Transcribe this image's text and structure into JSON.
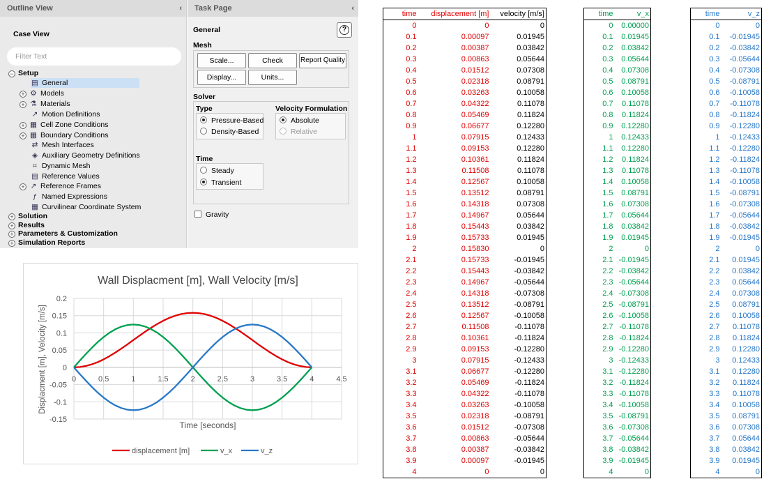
{
  "outline": {
    "title": "Outline View",
    "collapse": "‹",
    "case_view": "Case View",
    "filter_placeholder": "Filter Text",
    "items": [
      {
        "label": "Setup",
        "bold": true,
        "expander": "−",
        "icon": ""
      },
      {
        "label": "General",
        "icon": "general-icon",
        "selected": true
      },
      {
        "label": "Models",
        "expander": "+",
        "icon": "models-icon"
      },
      {
        "label": "Materials",
        "expander": "+",
        "icon": "materials-icon"
      },
      {
        "label": "Motion Definitions",
        "icon": "motion-icon"
      },
      {
        "label": "Cell Zone Conditions",
        "expander": "+",
        "icon": "cell-zone-icon"
      },
      {
        "label": "Boundary Conditions",
        "expander": "+",
        "icon": "boundary-icon"
      },
      {
        "label": "Mesh Interfaces",
        "icon": "mesh-interfaces-icon"
      },
      {
        "label": "Auxiliary Geometry Definitions",
        "icon": "auxiliary-geometry-icon"
      },
      {
        "label": "Dynamic Mesh",
        "icon": "dynamic-mesh-icon"
      },
      {
        "label": "Reference Values",
        "icon": "reference-values-icon"
      },
      {
        "label": "Reference Frames",
        "expander": "+",
        "icon": "reference-frames-icon"
      },
      {
        "label": "Named Expressions",
        "icon": "named-expressions-icon"
      },
      {
        "label": "Curvilinear Coordinate System",
        "icon": "curvilinear-icon"
      },
      {
        "label": "Solution",
        "bold": true,
        "expander": "+"
      },
      {
        "label": "Results",
        "bold": true,
        "expander": "+"
      },
      {
        "label": "Parameters & Customization",
        "bold": true,
        "expander": "+"
      },
      {
        "label": "Simulation Reports",
        "bold": true,
        "expander": "+"
      }
    ]
  },
  "task": {
    "title": "Task Page",
    "collapse": "‹",
    "general": "General",
    "help": "?",
    "mesh": "Mesh",
    "buttons": {
      "scale": "Scale...",
      "check": "Check",
      "report_quality": "Report Quality",
      "display": "Display...",
      "units": "Units..."
    },
    "solver": "Solver",
    "type_label": "Type",
    "type_options": [
      "Pressure-Based",
      "Density-Based"
    ],
    "type_selected": 0,
    "velocity_label": "Velocity Formulation",
    "velocity_options": [
      "Absolute",
      "Relative"
    ],
    "velocity_selected": 0,
    "time_label": "Time",
    "time_options": [
      "Steady",
      "Transient"
    ],
    "time_selected": 1,
    "gravity": "Gravity",
    "gravity_checked": false
  },
  "colors": {
    "displacement": "#e00000",
    "v_x": "#00a050",
    "v_z": "#2878c8"
  },
  "chart_data": {
    "type": "line",
    "title": "Wall Displacment [m], Wall Velocity [m/s]",
    "xlabel": "Time [seconds]",
    "ylabel": "Displacment [m], Velocity [m/s]",
    "xlim": [
      0,
      4.5
    ],
    "ylim": [
      -0.15,
      0.2
    ],
    "xticks": [
      "0",
      "0.5",
      "1",
      "1.5",
      "2",
      "2.5",
      "3",
      "3.5",
      "4",
      "4.5"
    ],
    "yticks": [
      "0.2",
      "0.15",
      "0.1",
      "0.05",
      "0",
      "-0.05",
      "-0.1",
      "-0.15"
    ],
    "grid": true,
    "legend": "bottom",
    "x": [
      0,
      0.1,
      0.2,
      0.3,
      0.4,
      0.5,
      0.6,
      0.7,
      0.8,
      0.9,
      1,
      1.1,
      1.2,
      1.3,
      1.4,
      1.5,
      1.6,
      1.7,
      1.8,
      1.9,
      2,
      2.1,
      2.2,
      2.3,
      2.4,
      2.5,
      2.6,
      2.7,
      2.8,
      2.9,
      3,
      3.1,
      3.2,
      3.3,
      3.4,
      3.5,
      3.6,
      3.7,
      3.8,
      3.9,
      4
    ],
    "series": [
      {
        "name": "displacement [m]",
        "values": [
          0,
          0.00097,
          0.00387,
          0.00863,
          0.01512,
          0.02318,
          0.03263,
          0.04322,
          0.05469,
          0.06677,
          0.07915,
          0.09153,
          0.10361,
          0.11508,
          0.12567,
          0.13512,
          0.14318,
          0.14967,
          0.15443,
          0.15733,
          0.1583,
          0.15733,
          0.15443,
          0.14967,
          0.14318,
          0.13512,
          0.12567,
          0.11508,
          0.10361,
          0.09153,
          0.07915,
          0.06677,
          0.05469,
          0.04322,
          0.03263,
          0.02318,
          0.01512,
          0.00863,
          0.00387,
          0.00097,
          0
        ]
      },
      {
        "name": "v_x",
        "values": [
          0,
          0.01945,
          0.03842,
          0.05644,
          0.07308,
          0.08791,
          0.10058,
          0.11078,
          0.11824,
          0.1228,
          0.12433,
          0.1228,
          0.11824,
          0.11078,
          0.10058,
          0.08791,
          0.07308,
          0.05644,
          0.03842,
          0.01945,
          0,
          -0.01945,
          -0.03842,
          -0.05644,
          -0.07308,
          -0.08791,
          -0.10058,
          -0.11078,
          -0.11824,
          -0.1228,
          -0.12433,
          -0.1228,
          -0.11824,
          -0.11078,
          -0.10058,
          -0.08791,
          -0.07308,
          -0.05644,
          -0.03842,
          -0.01945,
          0
        ]
      },
      {
        "name": "v_z",
        "values": [
          0,
          -0.01945,
          -0.03842,
          -0.05644,
          -0.07308,
          -0.08791,
          -0.10058,
          -0.11078,
          -0.11824,
          -0.1228,
          -0.12433,
          -0.1228,
          -0.11824,
          -0.11078,
          -0.10058,
          -0.08791,
          -0.07308,
          -0.05644,
          -0.03842,
          -0.01945,
          0,
          0.01945,
          0.03842,
          0.05644,
          0.07308,
          0.08791,
          0.10058,
          0.11078,
          0.11824,
          0.1228,
          0.12433,
          0.1228,
          0.11824,
          0.11078,
          0.10058,
          0.08791,
          0.07308,
          0.05644,
          0.03842,
          0.01945,
          0
        ]
      }
    ]
  },
  "tables": [
    {
      "headers": [
        "time",
        "displacement [m]",
        "velocity [m/s]"
      ],
      "header_colors": [
        "red",
        "red",
        "black"
      ],
      "col_colors": [
        "red",
        "red",
        "black"
      ],
      "cols": [
        [
          "0",
          "0.1",
          "0.2",
          "0.3",
          "0.4",
          "0.5",
          "0.6",
          "0.7",
          "0.8",
          "0.9",
          "1",
          "1.1",
          "1.2",
          "1.3",
          "1.4",
          "1.5",
          "1.6",
          "1.7",
          "1.8",
          "1.9",
          "2",
          "2.1",
          "2.2",
          "2.3",
          "2.4",
          "2.5",
          "2.6",
          "2.7",
          "2.8",
          "2.9",
          "3",
          "3.1",
          "3.2",
          "3.3",
          "3.4",
          "3.5",
          "3.6",
          "3.7",
          "3.8",
          "3.9",
          "4"
        ],
        [
          "0",
          "0.00097",
          "0.00387",
          "0.00863",
          "0.01512",
          "0.02318",
          "0.03263",
          "0.04322",
          "0.05469",
          "0.06677",
          "0.07915",
          "0.09153",
          "0.10361",
          "0.11508",
          "0.12567",
          "0.13512",
          "0.14318",
          "0.14967",
          "0.15443",
          "0.15733",
          "0.15830",
          "0.15733",
          "0.15443",
          "0.14967",
          "0.14318",
          "0.13512",
          "0.12567",
          "0.11508",
          "0.10361",
          "0.09153",
          "0.07915",
          "0.06677",
          "0.05469",
          "0.04322",
          "0.03263",
          "0.02318",
          "0.01512",
          "0.00863",
          "0.00387",
          "0.00097",
          "0"
        ],
        [
          "0",
          "0.01945",
          "0.03842",
          "0.05644",
          "0.07308",
          "0.08791",
          "0.10058",
          "0.11078",
          "0.11824",
          "0.12280",
          "0.12433",
          "0.12280",
          "0.11824",
          "0.11078",
          "0.10058",
          "0.08791",
          "0.07308",
          "0.05644",
          "0.03842",
          "0.01945",
          "0",
          "-0.01945",
          "-0.03842",
          "-0.05644",
          "-0.07308",
          "-0.08791",
          "-0.10058",
          "-0.11078",
          "-0.11824",
          "-0.12280",
          "-0.12433",
          "-0.12280",
          "-0.11824",
          "-0.11078",
          "-0.10058",
          "-0.08791",
          "-0.07308",
          "-0.05644",
          "-0.03842",
          "-0.01945",
          "0"
        ]
      ]
    },
    {
      "headers": [
        "time",
        "v_x"
      ],
      "header_colors": [
        "green",
        "green"
      ],
      "col_colors": [
        "green",
        "green"
      ],
      "cols": [
        [
          "0",
          "0.1",
          "0.2",
          "0.3",
          "0.4",
          "0.5",
          "0.6",
          "0.7",
          "0.8",
          "0.9",
          "1",
          "1.1",
          "1.2",
          "1.3",
          "1.4",
          "1.5",
          "1.6",
          "1.7",
          "1.8",
          "1.9",
          "2",
          "2.1",
          "2.2",
          "2.3",
          "2.4",
          "2.5",
          "2.6",
          "2.7",
          "2.8",
          "2.9",
          "3",
          "3.1",
          "3.2",
          "3.3",
          "3.4",
          "3.5",
          "3.6",
          "3.7",
          "3.8",
          "3.9",
          "4"
        ],
        [
          "0.00000",
          "0.01945",
          "0.03842",
          "0.05644",
          "0.07308",
          "0.08791",
          "0.10058",
          "0.11078",
          "0.11824",
          "0.12280",
          "0.12433",
          "0.12280",
          "0.11824",
          "0.11078",
          "0.10058",
          "0.08791",
          "0.07308",
          "0.05644",
          "0.03842",
          "0.01945",
          "0",
          "-0.01945",
          "-0.03842",
          "-0.05644",
          "-0.07308",
          "-0.08791",
          "-0.10058",
          "-0.11078",
          "-0.11824",
          "-0.12280",
          "-0.12433",
          "-0.12280",
          "-0.11824",
          "-0.11078",
          "-0.10058",
          "-0.08791",
          "-0.07308",
          "-0.05644",
          "-0.03842",
          "-0.01945",
          "0"
        ]
      ]
    },
    {
      "headers": [
        "time",
        "v_z"
      ],
      "header_colors": [
        "blue",
        "blue"
      ],
      "col_colors": [
        "blue",
        "blue"
      ],
      "cols": [
        [
          "0",
          "0.1",
          "0.2",
          "0.3",
          "0.4",
          "0.5",
          "0.6",
          "0.7",
          "0.8",
          "0.9",
          "1",
          "1.1",
          "1.2",
          "1.3",
          "1.4",
          "1.5",
          "1.6",
          "1.7",
          "1.8",
          "1.9",
          "2",
          "2.1",
          "2.2",
          "2.3",
          "2.4",
          "2.5",
          "2.6",
          "2.7",
          "2.8",
          "2.9",
          "3",
          "3.1",
          "3.2",
          "3.3",
          "3.4",
          "3.5",
          "3.6",
          "3.7",
          "3.8",
          "3.9",
          "4"
        ],
        [
          "0",
          "-0.01945",
          "-0.03842",
          "-0.05644",
          "-0.07308",
          "-0.08791",
          "-0.10058",
          "-0.11078",
          "-0.11824",
          "-0.12280",
          "-0.12433",
          "-0.12280",
          "-0.11824",
          "-0.11078",
          "-0.10058",
          "-0.08791",
          "-0.07308",
          "-0.05644",
          "-0.03842",
          "-0.01945",
          "0",
          "0.01945",
          "0.03842",
          "0.05644",
          "0.07308",
          "0.08791",
          "0.10058",
          "0.11078",
          "0.11824",
          "0.12280",
          "0.12433",
          "0.12280",
          "0.11824",
          "0.11078",
          "0.10058",
          "0.08791",
          "0.07308",
          "0.05644",
          "0.03842",
          "0.01945",
          "0"
        ]
      ]
    }
  ]
}
